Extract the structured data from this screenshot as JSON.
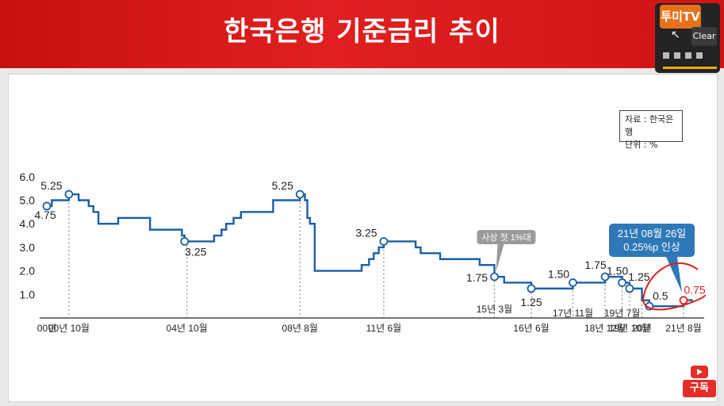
{
  "header": {
    "title": "한국은행 기준금리 추이"
  },
  "source": {
    "line1": "자료 : 한국은행",
    "line2": "단위 : %"
  },
  "overlay": {
    "logo": "투미TV",
    "clear_label": "Clear",
    "subscribe_label": "구독"
  },
  "colors": {
    "header": "#d81818",
    "line": "#1a5fa6",
    "highlight": "#e02020",
    "callout": "#2e78b8",
    "note": "#9a9a9a"
  },
  "chart_data": {
    "type": "line",
    "title": "",
    "xlabel": "",
    "ylabel": "",
    "ylim": [
      0,
      6.0
    ],
    "y_ticks": [
      "1.0",
      "2.0",
      "3.0",
      "4.0",
      "5.0",
      "6.0"
    ],
    "x_ticks": [
      {
        "label": "00년",
        "x": 2000.0
      },
      {
        "label": "00년 10월",
        "x": 2000.75
      },
      {
        "label": "04년 10월",
        "x": 2004.75
      },
      {
        "label": "08년 8월",
        "x": 2008.58
      },
      {
        "label": "11년 6월",
        "x": 2011.42
      },
      {
        "label": "15년 3월",
        "x": 2015.17
      },
      {
        "label": "16년 6월",
        "x": 2016.42
      },
      {
        "label": "17년 11월",
        "x": 2017.83
      },
      {
        "label": "18년 12월",
        "x": 2018.92
      },
      {
        "label": "19년 7월",
        "x": 2019.5
      },
      {
        "label": "19년 10월",
        "x": 2019.75
      },
      {
        "label": "20년",
        "x": 2020.17
      },
      {
        "label": "21년 8월",
        "x": 2021.58
      }
    ],
    "series": [
      {
        "name": "",
        "x": [
          2000.0,
          2000.08,
          2000.17,
          2000.42,
          2000.67,
          2000.75,
          2001.08,
          2001.42,
          2001.58,
          2001.75,
          2002.42,
          2002.92,
          2003.5,
          2004.5,
          2004.58,
          2004.67,
          2005.67,
          2005.92,
          2006.08,
          2006.33,
          2006.58,
          2007.5,
          2007.67,
          2008.58,
          2008.75,
          2008.83,
          2008.92,
          2009.08,
          2010.42,
          2010.67,
          2010.92,
          2011.08,
          2011.25,
          2011.42,
          2012.33,
          2012.5,
          2012.67,
          2013.33,
          2014.58,
          2014.67,
          2015.17,
          2015.5,
          2016.42,
          2017.83,
          2018.92,
          2019.5,
          2019.75,
          2020.17,
          2020.42,
          2021.58,
          2021.9
        ],
        "y": [
          4.75,
          4.75,
          5.0,
          5.0,
          5.0,
          5.25,
          5.0,
          4.75,
          4.5,
          4.0,
          4.25,
          4.25,
          3.75,
          3.75,
          3.5,
          3.25,
          3.5,
          3.75,
          4.0,
          4.25,
          4.5,
          4.5,
          5.0,
          5.25,
          5.0,
          4.25,
          4.0,
          2.0,
          2.0,
          2.25,
          2.5,
          2.75,
          3.0,
          3.25,
          3.25,
          3.0,
          2.75,
          2.5,
          2.5,
          2.25,
          1.75,
          1.5,
          1.25,
          1.5,
          1.75,
          1.5,
          1.25,
          0.75,
          0.5,
          0.75,
          0.75
        ]
      }
    ],
    "point_labels": [
      {
        "text": "4.75",
        "x": 2000.0,
        "y": 4.75
      },
      {
        "text": "5.25",
        "x": 2000.75,
        "y": 5.25
      },
      {
        "text": "3.25",
        "x": 2004.67,
        "y": 3.25
      },
      {
        "text": "5.25",
        "x": 2008.58,
        "y": 5.25
      },
      {
        "text": "3.25",
        "x": 2011.42,
        "y": 3.25
      },
      {
        "text": "1.75",
        "x": 2015.17,
        "y": 1.75
      },
      {
        "text": "1.25",
        "x": 2016.42,
        "y": 1.25
      },
      {
        "text": "1.50",
        "x": 2017.83,
        "y": 1.5
      },
      {
        "text": "1.75",
        "x": 2018.92,
        "y": 1.75
      },
      {
        "text": "1.50",
        "x": 2019.5,
        "y": 1.5
      },
      {
        "text": "1.25",
        "x": 2019.75,
        "y": 1.25
      },
      {
        "text": "0.5",
        "x": 2020.42,
        "y": 0.5
      },
      {
        "text": "0.75",
        "x": 2021.58,
        "y": 0.75
      }
    ],
    "annotations": [
      {
        "text": "사상 첫 1%대",
        "x": 2015.17,
        "y": 1.75
      },
      {
        "lines": [
          "21년 08월 26일",
          "0.25%p 인상"
        ],
        "x": 2021.58,
        "y": 0.75
      }
    ],
    "grid": false,
    "legend": "none"
  }
}
